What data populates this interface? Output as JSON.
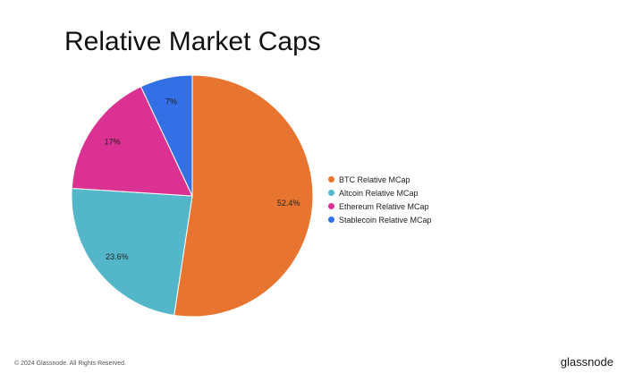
{
  "chart_data": {
    "type": "pie",
    "title": "Relative Market Caps",
    "categories": [
      "BTC Relative MCap",
      "Altcoin Relative MCap",
      "Ethereum Relative MCap",
      "Stablecoin Relative MCap"
    ],
    "values": [
      52.4,
      23.6,
      17,
      7
    ],
    "labels": [
      "52.4%",
      "23.6%",
      "17%",
      "7%"
    ],
    "colors": [
      "#E8752F",
      "#54B6C9",
      "#DA3192",
      "#3370E6"
    ],
    "legend_position": "right"
  },
  "footer": {
    "copyright": "© 2024 Glassnode. All Rights Reserved.",
    "brand": "glassnode"
  }
}
